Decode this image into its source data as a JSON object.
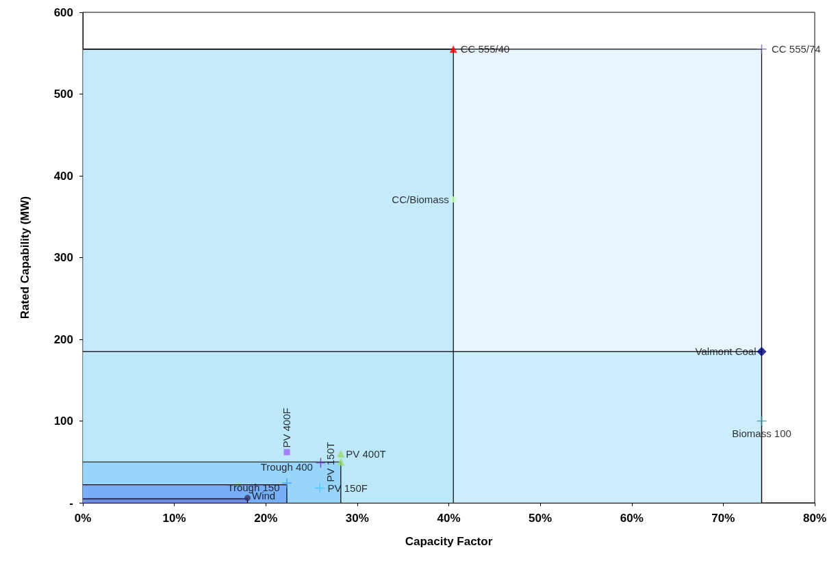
{
  "chart_data": {
    "type": "scatter",
    "xlabel": "Capacity Factor",
    "ylabel": "Rated Capability (MW)",
    "xlim": [
      0,
      80
    ],
    "xticks": [
      {
        "value": 0,
        "label": "0%"
      },
      {
        "value": 10,
        "label": "10%"
      },
      {
        "value": 20,
        "label": "20%"
      },
      {
        "value": 30,
        "label": "30%"
      },
      {
        "value": 40,
        "label": "40%"
      },
      {
        "value": 50,
        "label": "50%"
      },
      {
        "value": 60,
        "label": "60%"
      },
      {
        "value": 70,
        "label": "70%"
      },
      {
        "value": 80,
        "label": "80%"
      }
    ],
    "ylim": [
      0,
      600
    ],
    "yticks": [
      {
        "value": 0,
        "label": "-"
      },
      100,
      200,
      300,
      400,
      500,
      600
    ],
    "grid": false,
    "legend": false,
    "series": [
      {
        "type": "area",
        "color": "#d6ecfc",
        "x": [
          0,
          74.2,
          74.2
        ],
        "values": [
          555,
          555,
          0
        ]
      },
      {
        "type": "area",
        "color": "#a8e2fa",
        "x": [
          0,
          40.5,
          40.5
        ],
        "values": [
          555,
          555,
          0
        ]
      },
      {
        "type": "area",
        "color": "#b4e6fa",
        "x": [
          0,
          74.2,
          74.2
        ],
        "values": [
          185,
          185,
          0
        ]
      },
      {
        "type": "area",
        "color": "#7cc4fb",
        "x": [
          0,
          28.2,
          28.2
        ],
        "values": [
          50,
          50,
          0
        ]
      },
      {
        "type": "area",
        "color": "#5b8ff6",
        "x": [
          0,
          22.3,
          22.3
        ],
        "values": [
          22,
          22,
          0
        ]
      },
      {
        "type": "area",
        "color": "#6a6fdc",
        "x": [
          0,
          18,
          18
        ],
        "values": [
          5,
          5,
          0
        ]
      },
      {
        "name": "CC 555/40",
        "color": "#ff0000",
        "marker": "triangle",
        "x": [
          40.5
        ],
        "values": [
          555
        ]
      },
      {
        "name": "CC 555/74",
        "color": "#6666aa",
        "marker": "cross",
        "x": [
          74.2
        ],
        "values": [
          555
        ]
      },
      {
        "name": "CC/Biomass",
        "color": "#ccffcc",
        "marker": "square",
        "x": [
          40.5
        ],
        "values": [
          371
        ]
      },
      {
        "name": "Valmont Coal",
        "color": "#000080",
        "marker": "diamond",
        "x": [
          74.2
        ],
        "values": [
          185
        ]
      },
      {
        "name": "Biomass 100",
        "color": "#339999",
        "marker": "cross",
        "x": [
          74.2
        ],
        "values": [
          100
        ]
      },
      {
        "name": "PV 400F",
        "color": "#9966ff",
        "marker": "square",
        "x": [
          22.3
        ],
        "values": [
          62
        ]
      },
      {
        "name": "Trough 400",
        "color": "#6633cc",
        "marker": "cross",
        "x": [
          26
        ],
        "values": [
          49
        ]
      },
      {
        "name": "PV 150T",
        "color": "#99dd66",
        "marker": "triangle",
        "x": [
          28.2
        ],
        "values": [
          50
        ]
      },
      {
        "name": "PV 400T",
        "color": "#99dd66",
        "marker": "triangle",
        "x": [
          28.2
        ],
        "values": [
          60
        ]
      },
      {
        "name": "PV 150F",
        "color": "#33ccff",
        "marker": "cross",
        "x": [
          25.9
        ],
        "values": [
          18
        ]
      },
      {
        "name": "Trough 150",
        "color": "#3399ff",
        "marker": "cross",
        "x": [
          22.3
        ],
        "values": [
          24
        ]
      },
      {
        "name": "Wind",
        "color": "#333366",
        "marker": "circle",
        "x": [
          18
        ],
        "values": [
          6
        ]
      }
    ]
  }
}
